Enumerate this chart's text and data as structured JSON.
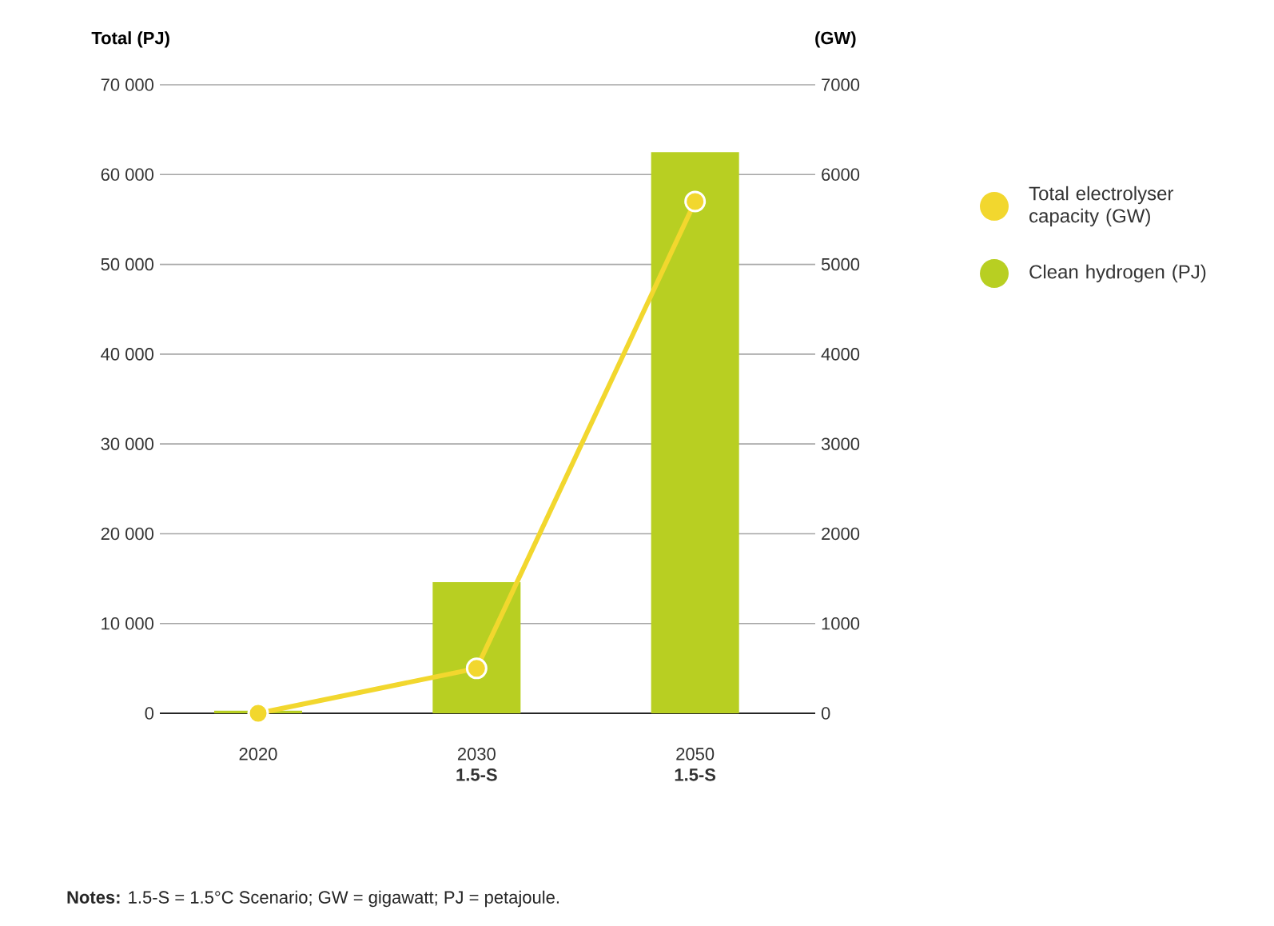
{
  "chart_data": {
    "type": "bar",
    "categories": [
      "2020",
      "2030 **1.5-S**",
      "2050 **1.5-S**"
    ],
    "series": [
      {
        "name": "Total electrolyser capacity (GW)",
        "type": "line",
        "axis": "y2",
        "color": "#f2d72e",
        "marker": "circle",
        "values": [
          0,
          500,
          5700
        ]
      },
      {
        "name": "Clean hydrogen (PJ)",
        "color": "#b8cf22",
        "values": [
          300,
          14600,
          62500
        ]
      }
    ],
    "ylabel": "Total (PJ)",
    "y2label": "(GW)",
    "ylim": [
      0,
      70000
    ],
    "yticks": [
      0,
      {
        "value": 10000,
        "label": "10 000"
      },
      {
        "value": 20000,
        "label": "20 000"
      },
      {
        "value": 30000,
        "label": "30 000"
      },
      {
        "value": 40000,
        "label": "40 000"
      },
      {
        "value": 50000,
        "label": "50 000"
      },
      {
        "value": 60000,
        "label": "60 000"
      },
      {
        "value": 70000,
        "label": "70 000"
      }
    ],
    "y2lim": [
      0,
      7000
    ],
    "y2ticks": [
      0,
      1000,
      2000,
      3000,
      4000,
      5000,
      6000,
      7000
    ],
    "grid": "y",
    "legend": "right",
    "annotations": [
      "**Notes:** 1.5-S = 1.5°C Scenario; GW = gigawatt; PJ = petajoule."
    ]
  }
}
